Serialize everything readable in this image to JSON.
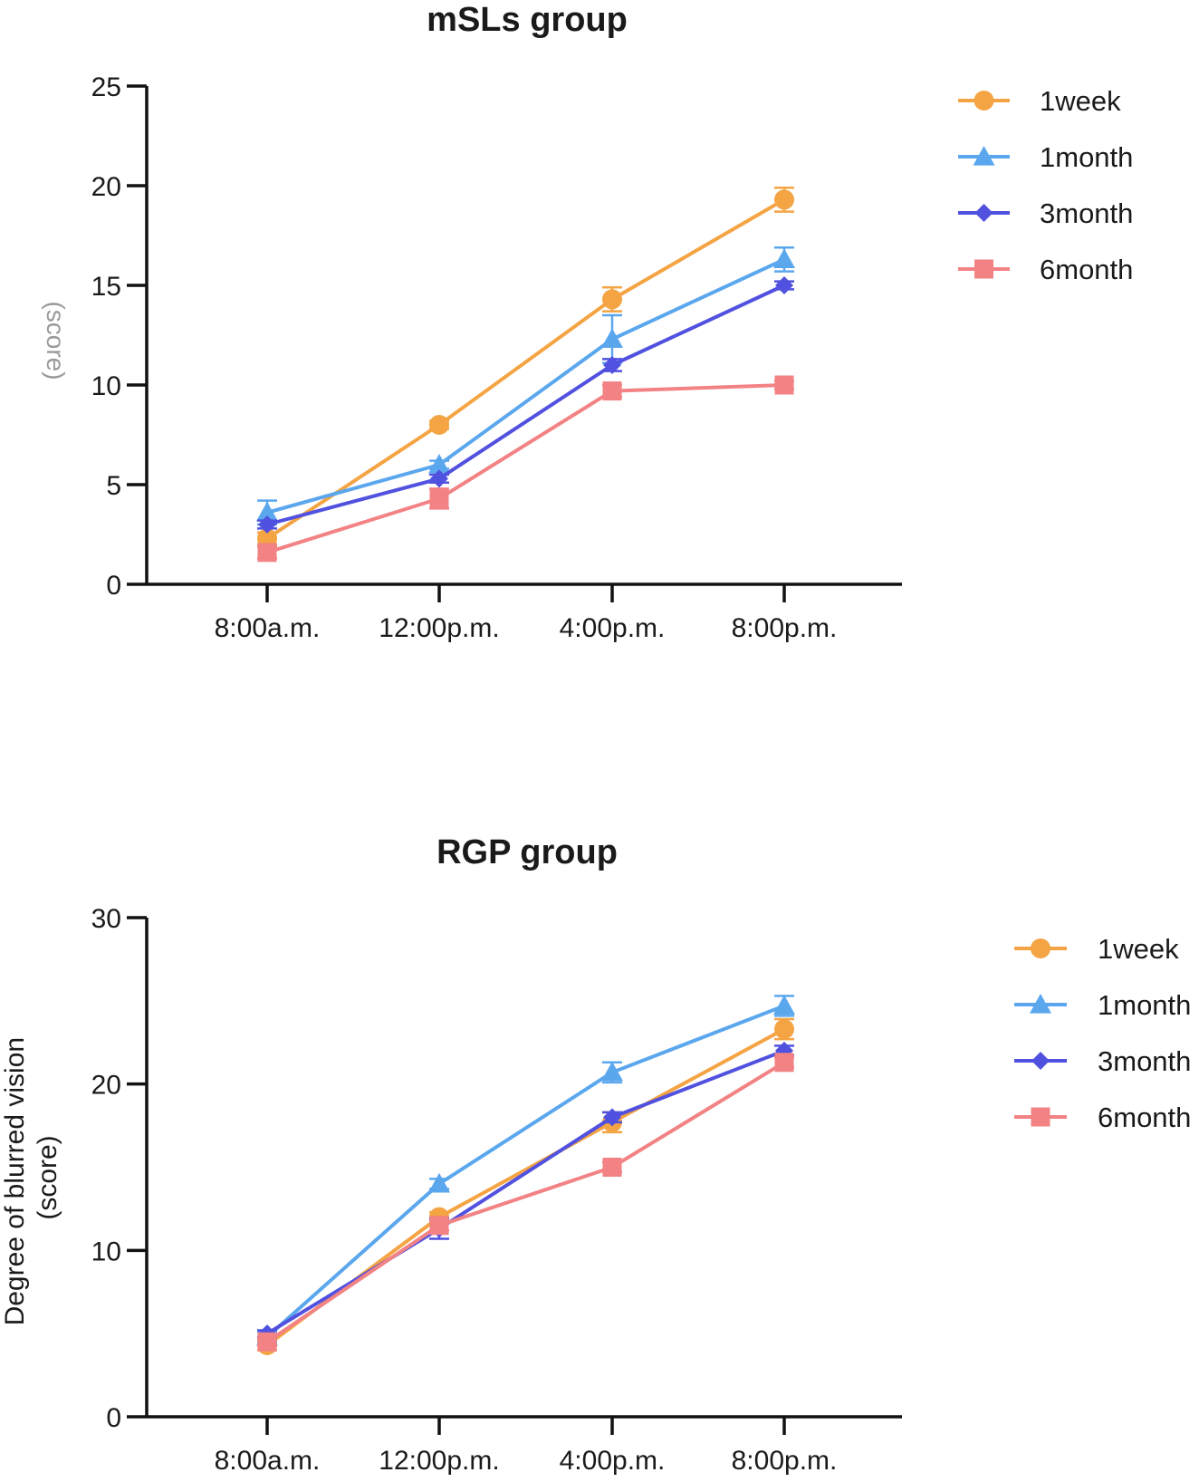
{
  "colors": {
    "1week": "#F4A443",
    "1month": "#5BA7EE",
    "3month": "#5151E0",
    "6month": "#F28284",
    "axis": "#111111"
  },
  "chart_data": [
    {
      "type": "line",
      "title": "mSLs group",
      "xlabel": "",
      "ylabel": "(score)",
      "categories": [
        "8:00a.m.",
        "12:00p.m.",
        "4:00p.m.",
        "8:00p.m."
      ],
      "ylim": [
        0,
        25
      ],
      "yticks": [
        0,
        5,
        10,
        15,
        20,
        25
      ],
      "legend_position": "top-right",
      "series": [
        {
          "name": "1week",
          "marker": "circle",
          "values": [
            2.3,
            8.0,
            14.3,
            19.3
          ],
          "errors": [
            0.3,
            0.2,
            0.6,
            0.6
          ]
        },
        {
          "name": "1month",
          "marker": "triangle",
          "values": [
            3.6,
            6.0,
            12.3,
            16.3
          ],
          "errors": [
            0.6,
            0.2,
            1.2,
            0.6
          ]
        },
        {
          "name": "3month",
          "marker": "diamond",
          "values": [
            3.0,
            5.3,
            11.0,
            15.0
          ],
          "errors": [
            0.2,
            0.2,
            0.3,
            0.2
          ]
        },
        {
          "name": "6month",
          "marker": "square",
          "values": [
            1.6,
            4.3,
            9.7,
            10.0
          ],
          "errors": [
            0.3,
            0.5,
            0.3,
            0.2
          ]
        }
      ]
    },
    {
      "type": "line",
      "title": "RGP group",
      "xlabel": "",
      "ylabel": "Degree of blurred vision\n(score)",
      "categories": [
        "8:00a.m.",
        "12:00p.m.",
        "4:00p.m.",
        "8:00p.m."
      ],
      "ylim": [
        0,
        30
      ],
      "yticks": [
        0,
        10,
        20,
        30
      ],
      "legend_position": "right",
      "series": [
        {
          "name": "1week",
          "marker": "circle",
          "values": [
            4.3,
            12.0,
            17.7,
            23.3
          ],
          "errors": [
            0.3,
            0.3,
            0.6,
            0.6
          ]
        },
        {
          "name": "1month",
          "marker": "triangle",
          "values": [
            4.8,
            14.0,
            20.7,
            24.7
          ],
          "errors": [
            0.3,
            0.3,
            0.6,
            0.6
          ]
        },
        {
          "name": "3month",
          "marker": "diamond",
          "values": [
            5.0,
            11.3,
            18.0,
            22.0
          ],
          "errors": [
            0.2,
            0.6,
            0.3,
            0.3
          ]
        },
        {
          "name": "6month",
          "marker": "square",
          "values": [
            4.5,
            11.5,
            15.0,
            21.3
          ],
          "errors": [
            0.2,
            0.3,
            0.3,
            0.3
          ]
        }
      ]
    }
  ]
}
